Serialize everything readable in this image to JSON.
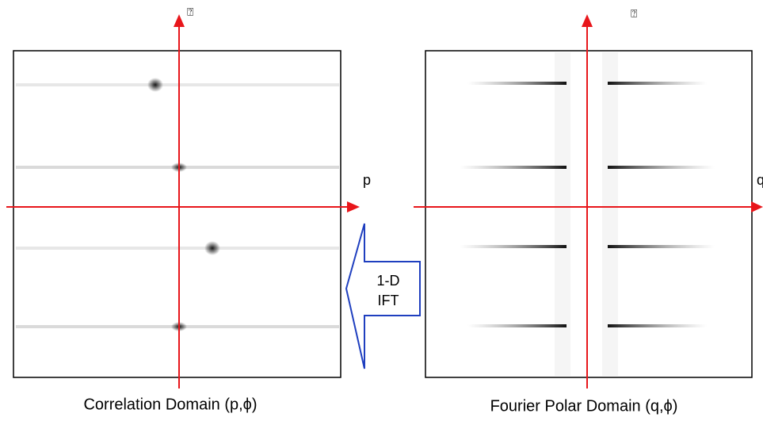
{
  "left_panel": {
    "y_axis_label": "⍰",
    "x_axis_label": "p",
    "caption": "Correlation Domain (p,ϕ)"
  },
  "right_panel": {
    "y_axis_label": "⍰",
    "x_axis_label": "q",
    "caption": "Fourier Polar Domain (q,ϕ)"
  },
  "arrow": {
    "line1": "1-D",
    "line2": "IFT"
  }
}
